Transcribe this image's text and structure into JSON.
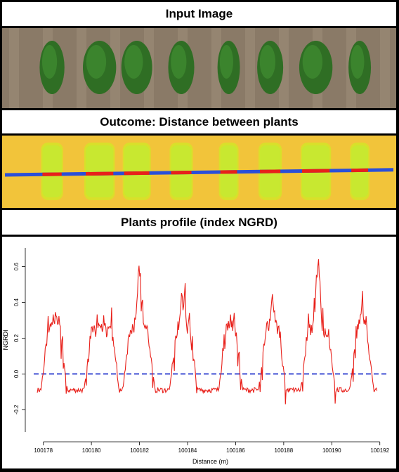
{
  "headers": {
    "input": "Input Image",
    "outcome": "Outcome: Distance between plants",
    "profile": "Plants profile (index NGRD)"
  },
  "colors": {
    "soil": "#8a7a67",
    "plant_dark": "#2f6e24",
    "index_background": "#f2c43a",
    "plant_index": "#c8e830",
    "gap_line": "#2a4fd8",
    "plant_line": "#e8201a",
    "profile_line": "#e8201a",
    "zero_line": "#2233cc"
  },
  "chart_data": {
    "type": "line",
    "title": "",
    "xlabel": "Distance (m)",
    "ylabel": "NGRDI",
    "xlim": [
      100177.6,
      100192.3
    ],
    "ylim": [
      -0.34,
      0.72
    ],
    "xticks": [
      100178,
      100180,
      100182,
      100184,
      100186,
      100188,
      100190,
      100192
    ],
    "yticks": [
      -0.2,
      0.0,
      0.2,
      0.4,
      0.6
    ],
    "ytick_labels": [
      "-0.2",
      "0.0",
      "0.2",
      "0.4",
      "0.6"
    ],
    "reference_line": {
      "y": 0.0,
      "style": "dashed"
    },
    "plants": [
      {
        "start": 100178.05,
        "end": 100178.85,
        "peak": 0.35
      },
      {
        "start": 100179.85,
        "end": 100181.0,
        "peak": 0.3
      },
      {
        "start": 100181.45,
        "end": 100182.5,
        "peak": 0.69
      },
      {
        "start": 100183.4,
        "end": 100184.25,
        "peak": 0.48
      },
      {
        "start": 100185.45,
        "end": 100186.15,
        "peak": 0.32
      },
      {
        "start": 100187.1,
        "end": 100187.95,
        "peak": 0.45
      },
      {
        "start": 100188.85,
        "end": 100190.0,
        "peak": 0.66
      },
      {
        "start": 100190.9,
        "end": 100191.6,
        "peak": 0.42
      }
    ],
    "gap_level": -0.09
  }
}
